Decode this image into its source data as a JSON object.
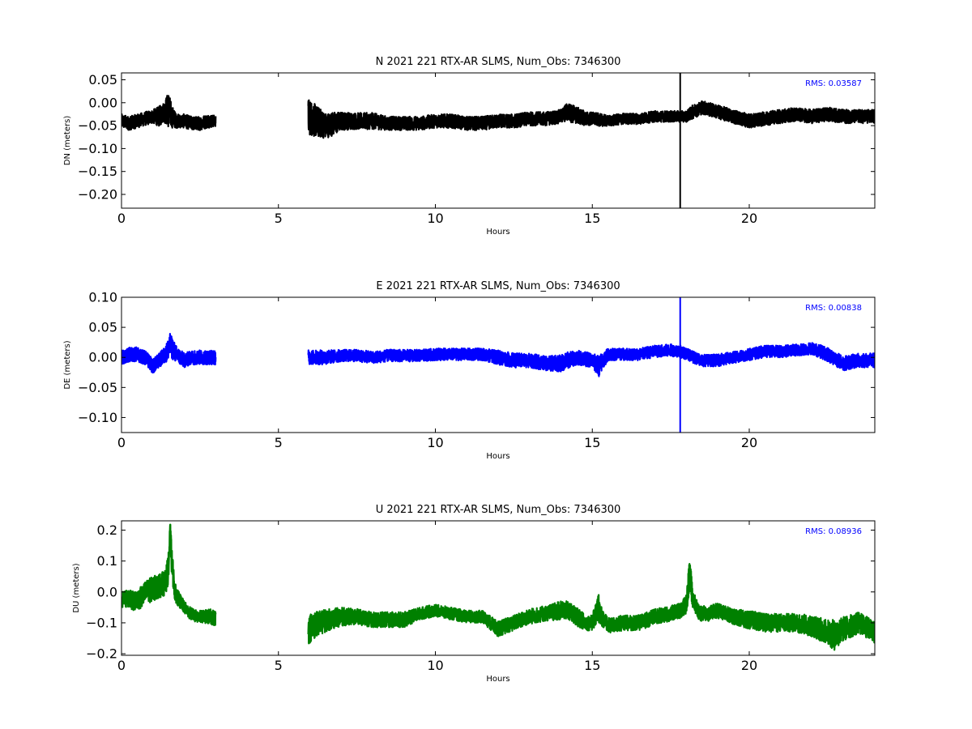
{
  "chart_data": [
    {
      "type": "line",
      "title": "N 2021 221 RTX-AR  SLMS, Num_Obs: 7346300",
      "xlabel": "Hours",
      "ylabel": "DN (meters)",
      "xlim": [
        0,
        24
      ],
      "ylim": [
        -0.23,
        0.065
      ],
      "xticks": [
        0,
        5,
        10,
        15,
        20
      ],
      "yticks": [
        0.05,
        0.0,
        -0.05,
        -0.1,
        -0.15,
        -0.2
      ],
      "ytick_labels": [
        "0.05",
        "0.00",
        "−0.05",
        "−0.10",
        "−0.15",
        "−0.20"
      ],
      "color": "#000000",
      "annotation": {
        "text": "RMS:  0.03587",
        "color": "#0000ff",
        "position": "top-right"
      },
      "series": [
        {
          "segments": [
            {
              "x": [
                0.0,
                0.25,
                0.5,
                0.75,
                1.0,
                1.2,
                1.35,
                1.5,
                1.6,
                1.75,
                2.0,
                2.25,
                2.5,
                2.75,
                3.0
              ],
              "center": [
                -0.04,
                -0.045,
                -0.04,
                -0.035,
                -0.03,
                -0.03,
                -0.02,
                -0.015,
                -0.03,
                -0.04,
                -0.04,
                -0.045,
                -0.045,
                -0.04,
                -0.04
              ],
              "spread": [
                0.015,
                0.015,
                0.015,
                0.015,
                0.015,
                0.022,
                0.022,
                0.04,
                0.025,
                0.015,
                0.015,
                0.015,
                0.015,
                0.015,
                0.012
              ]
            },
            {
              "x": [
                5.95,
                6.2,
                6.5,
                6.8,
                7.0,
                7.5,
                8.0,
                8.5,
                9.0,
                9.5,
                10.0,
                10.5,
                11.0,
                11.5,
                12.0,
                12.5,
                13.0,
                13.5,
                14.0,
                14.2,
                14.4,
                14.8,
                15.0,
                15.5,
                16.0,
                16.5,
                17.0,
                17.5,
                17.8,
                18.0,
                18.2,
                18.5,
                19.0,
                19.5,
                20.0,
                20.5,
                21.0,
                21.5,
                22.0,
                22.5,
                23.0,
                23.5,
                24.0
              ],
              "center": [
                -0.03,
                -0.04,
                -0.05,
                -0.045,
                -0.04,
                -0.04,
                -0.04,
                -0.045,
                -0.045,
                -0.045,
                -0.04,
                -0.04,
                -0.045,
                -0.045,
                -0.04,
                -0.04,
                -0.035,
                -0.035,
                -0.03,
                -0.02,
                -0.025,
                -0.035,
                -0.035,
                -0.04,
                -0.035,
                -0.035,
                -0.03,
                -0.03,
                -0.03,
                -0.03,
                -0.02,
                -0.01,
                -0.02,
                -0.03,
                -0.04,
                -0.035,
                -0.03,
                -0.025,
                -0.03,
                -0.025,
                -0.03,
                -0.03,
                -0.03
              ],
              "spread": [
                0.04,
                0.035,
                0.028,
                0.025,
                0.02,
                0.018,
                0.018,
                0.015,
                0.015,
                0.015,
                0.015,
                0.015,
                0.015,
                0.015,
                0.015,
                0.015,
                0.015,
                0.015,
                0.015,
                0.02,
                0.02,
                0.015,
                0.015,
                0.012,
                0.012,
                0.012,
                0.012,
                0.012,
                0.012,
                0.012,
                0.015,
                0.015,
                0.015,
                0.015,
                0.015,
                0.015,
                0.015,
                0.015,
                0.015,
                0.015,
                0.015,
                0.015,
                0.015
              ]
            }
          ],
          "spike": {
            "x": 17.8,
            "min": -0.23,
            "max": 0.065
          }
        }
      ]
    },
    {
      "type": "line",
      "title": "E 2021 221 RTX-AR  SLMS, Num_Obs: 7346300",
      "xlabel": "Hours",
      "ylabel": "DE (meters)",
      "xlim": [
        0,
        24
      ],
      "ylim": [
        -0.125,
        0.1
      ],
      "xticks": [
        0,
        5,
        10,
        15,
        20
      ],
      "yticks": [
        0.1,
        0.05,
        0.0,
        -0.05,
        -0.1
      ],
      "ytick_labels": [
        "0.10",
        "0.05",
        "0.00",
        "−0.05",
        "−0.10"
      ],
      "color": "#0000ff",
      "annotation": {
        "text": "RMS:  0.00838",
        "color": "#0000ff",
        "position": "top-right"
      },
      "series": [
        {
          "segments": [
            {
              "x": [
                0.0,
                0.25,
                0.5,
                0.75,
                1.0,
                1.2,
                1.4,
                1.55,
                1.75,
                2.0,
                2.25,
                2.5,
                2.75,
                3.0
              ],
              "center": [
                0.0,
                0.005,
                0.005,
                0.0,
                -0.015,
                -0.005,
                0.005,
                0.02,
                0.005,
                -0.005,
                0.0,
                0.0,
                0.0,
                0.0
              ],
              "spread": [
                0.012,
                0.012,
                0.012,
                0.012,
                0.012,
                0.012,
                0.014,
                0.02,
                0.014,
                0.012,
                0.012,
                0.012,
                0.012,
                0.012
              ]
            },
            {
              "x": [
                5.95,
                6.2,
                6.5,
                7.0,
                7.5,
                8.0,
                8.5,
                9.0,
                9.5,
                10.0,
                10.5,
                11.0,
                11.5,
                12.0,
                12.5,
                13.0,
                13.5,
                14.0,
                14.2,
                14.5,
                15.0,
                15.2,
                15.5,
                16.0,
                16.5,
                17.0,
                17.5,
                17.8,
                18.0,
                18.5,
                19.0,
                19.5,
                20.0,
                20.5,
                21.0,
                21.5,
                22.0,
                22.5,
                23.0,
                23.5,
                24.0
              ],
              "center": [
                0.0,
                0.0,
                0.0,
                0.003,
                0.003,
                0.0,
                0.003,
                0.003,
                0.003,
                0.005,
                0.005,
                0.005,
                0.005,
                0.0,
                -0.005,
                -0.005,
                -0.01,
                -0.01,
                -0.005,
                0.0,
                -0.005,
                -0.015,
                0.005,
                0.005,
                0.005,
                0.01,
                0.012,
                0.01,
                0.005,
                -0.005,
                -0.005,
                0.0,
                0.005,
                0.01,
                0.01,
                0.012,
                0.015,
                0.005,
                -0.01,
                -0.005,
                -0.005
              ],
              "spread": [
                0.012,
                0.012,
                0.012,
                0.01,
                0.01,
                0.01,
                0.01,
                0.01,
                0.01,
                0.01,
                0.01,
                0.01,
                0.01,
                0.012,
                0.012,
                0.012,
                0.012,
                0.014,
                0.014,
                0.012,
                0.012,
                0.018,
                0.01,
                0.01,
                0.01,
                0.01,
                0.01,
                0.01,
                0.01,
                0.01,
                0.01,
                0.01,
                0.01,
                0.01,
                0.01,
                0.01,
                0.01,
                0.012,
                0.012,
                0.012,
                0.012
              ]
            }
          ],
          "spike": {
            "x": 17.8,
            "min": -0.125,
            "max": 0.1
          }
        }
      ]
    },
    {
      "type": "line",
      "title": "U 2021 221 RTX-AR  SLMS, Num_Obs: 7346300",
      "xlabel": "Hours",
      "ylabel": "DU (meters)",
      "xlim": [
        0,
        24
      ],
      "ylim": [
        -0.205,
        0.23
      ],
      "xticks": [
        0,
        5,
        10,
        15,
        20
      ],
      "yticks": [
        0.2,
        0.1,
        0.0,
        -0.1,
        -0.2
      ],
      "ytick_labels": [
        "0.2",
        "0.1",
        "0.0",
        "−0.1",
        "−0.2"
      ],
      "color": "#008000",
      "annotation": {
        "text": "RMS:  0.08936",
        "color": "#0000ff",
        "position": "top-right"
      },
      "series": [
        {
          "segments": [
            {
              "x": [
                0.0,
                0.2,
                0.4,
                0.6,
                0.8,
                1.0,
                1.2,
                1.4,
                1.5,
                1.55,
                1.6,
                1.7,
                1.8,
                2.0,
                2.2,
                2.4,
                2.6,
                2.8,
                3.0
              ],
              "center": [
                -0.03,
                -0.02,
                -0.03,
                -0.02,
                0.0,
                0.01,
                0.02,
                0.03,
                0.08,
                0.2,
                0.1,
                0.0,
                -0.02,
                -0.05,
                -0.07,
                -0.08,
                -0.08,
                -0.08,
                -0.085
              ],
              "spread": [
                0.03,
                0.03,
                0.03,
                0.035,
                0.04,
                0.04,
                0.04,
                0.04,
                0.05,
                0.03,
                0.05,
                0.03,
                0.025,
                0.02,
                0.02,
                0.02,
                0.02,
                0.025,
                0.025
              ]
            },
            {
              "x": [
                5.95,
                6.1,
                6.3,
                6.6,
                7.0,
                7.5,
                8.0,
                8.5,
                9.0,
                9.5,
                10.0,
                10.5,
                11.0,
                11.5,
                12.0,
                12.5,
                13.0,
                13.5,
                14.0,
                14.2,
                14.5,
                14.8,
                15.0,
                15.2,
                15.3,
                15.5,
                16.0,
                16.5,
                17.0,
                17.5,
                17.8,
                18.0,
                18.1,
                18.2,
                18.4,
                18.7,
                19.0,
                19.5,
                20.0,
                20.5,
                21.0,
                21.5,
                22.0,
                22.5,
                22.7,
                23.0,
                23.5,
                24.0
              ],
              "center": [
                -0.12,
                -0.11,
                -0.1,
                -0.09,
                -0.08,
                -0.08,
                -0.09,
                -0.09,
                -0.09,
                -0.07,
                -0.06,
                -0.07,
                -0.08,
                -0.08,
                -0.12,
                -0.1,
                -0.08,
                -0.07,
                -0.06,
                -0.06,
                -0.08,
                -0.1,
                -0.1,
                -0.05,
                -0.08,
                -0.11,
                -0.1,
                -0.1,
                -0.08,
                -0.07,
                -0.06,
                -0.04,
                0.06,
                -0.02,
                -0.07,
                -0.07,
                -0.06,
                -0.08,
                -0.09,
                -0.1,
                -0.1,
                -0.1,
                -0.11,
                -0.13,
                -0.14,
                -0.12,
                -0.1,
                -0.13
              ],
              "spread": [
                0.05,
                0.045,
                0.04,
                0.035,
                0.03,
                0.025,
                0.025,
                0.025,
                0.025,
                0.02,
                0.02,
                0.02,
                0.02,
                0.02,
                0.025,
                0.025,
                0.025,
                0.025,
                0.03,
                0.03,
                0.03,
                0.025,
                0.025,
                0.05,
                0.03,
                0.025,
                0.025,
                0.025,
                0.025,
                0.025,
                0.025,
                0.03,
                0.06,
                0.03,
                0.025,
                0.025,
                0.025,
                0.025,
                0.03,
                0.03,
                0.03,
                0.03,
                0.035,
                0.04,
                0.05,
                0.04,
                0.035,
                0.035
              ]
            }
          ]
        }
      ]
    }
  ]
}
